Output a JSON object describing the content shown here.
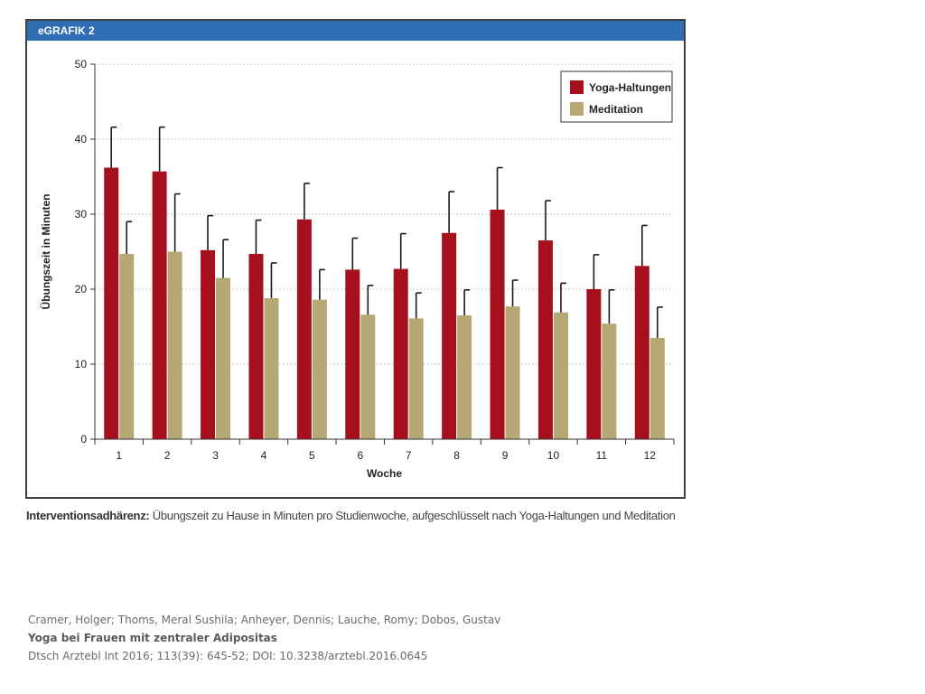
{
  "figure": {
    "header": "eGRAFIK 2",
    "caption_bold": "Interventionsadhärenz:",
    "caption_text": " Übungszeit zu Hause in Minuten pro Studienwoche, aufgeschlüsselt nach Yoga-Haltungen und Meditation"
  },
  "citation": {
    "authors": "Cramer, Holger; Thoms, Meral Sushila; Anheyer, Dennis; Lauche, Romy; Dobos, Gustav",
    "title": "Yoga bei Frauen mit zentraler Adipositas",
    "source": "Dtsch Arztebl Int 2016; 113(39): 645-52; DOI: 10.3238/arztebl.2016.0645"
  },
  "chart_data": {
    "type": "bar",
    "xlabel": "Woche",
    "ylabel": "Übungszeit in Minuten",
    "ylim": [
      0,
      50
    ],
    "yticks": [
      0,
      10,
      20,
      30,
      40,
      50
    ],
    "grid": true,
    "legend_position": "top-right",
    "categories": [
      "1",
      "2",
      "3",
      "4",
      "5",
      "6",
      "7",
      "8",
      "9",
      "10",
      "11",
      "12"
    ],
    "series": [
      {
        "name": "Yoga-Haltungen",
        "color": "#a6101c",
        "values": [
          36.2,
          35.7,
          25.2,
          24.7,
          29.3,
          22.6,
          22.7,
          27.5,
          30.6,
          26.5,
          20.0,
          23.1
        ],
        "error_upper": [
          41.6,
          41.6,
          29.8,
          29.2,
          34.1,
          26.8,
          27.4,
          33.0,
          36.2,
          31.8,
          24.6,
          28.5
        ]
      },
      {
        "name": "Meditation",
        "color": "#b5a874",
        "values": [
          24.7,
          25.0,
          21.5,
          18.8,
          18.6,
          16.6,
          16.1,
          16.5,
          17.7,
          16.9,
          15.4,
          13.5
        ],
        "error_upper": [
          29.0,
          32.7,
          26.6,
          23.5,
          22.6,
          20.5,
          19.5,
          19.9,
          21.2,
          20.8,
          19.9,
          17.6
        ]
      }
    ]
  }
}
